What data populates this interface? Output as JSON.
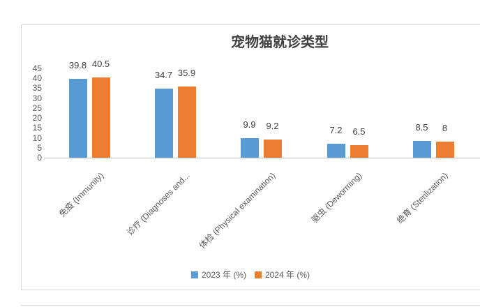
{
  "chart_data": {
    "type": "bar",
    "title": "宠物猫就诊类型",
    "categories": [
      "免疫 (Immunity)",
      "诊疗 (Diagnoses and...",
      "体检 (Physical examination)",
      "驱虫 (Deworming)",
      "绝育 (Sterilization)"
    ],
    "series": [
      {
        "name": "2023 年 (%)",
        "color": "#5b9bd5",
        "values": [
          39.8,
          34.7,
          9.9,
          7.2,
          8.5
        ]
      },
      {
        "name": "2024 年 (%)",
        "color": "#ed7d31",
        "values": [
          40.5,
          35.9,
          9.2,
          6.5,
          8
        ]
      }
    ],
    "y_ticks": [
      0,
      5,
      10,
      15,
      20,
      25,
      30,
      35,
      40,
      45
    ],
    "ylim": [
      0,
      45
    ],
    "grid": false,
    "data_labels": "outside-end",
    "x_label_rotation": 45,
    "legend_position": "bottom"
  },
  "colors": {
    "series_2023": "#5b9bd5",
    "series_2024": "#ed7d31",
    "frame_border": "#d9d9d9",
    "axis_line": "#bfbfbf",
    "tick_text": "#595959",
    "data_label_text": "#404040",
    "title_text": "#3f3f3f"
  }
}
